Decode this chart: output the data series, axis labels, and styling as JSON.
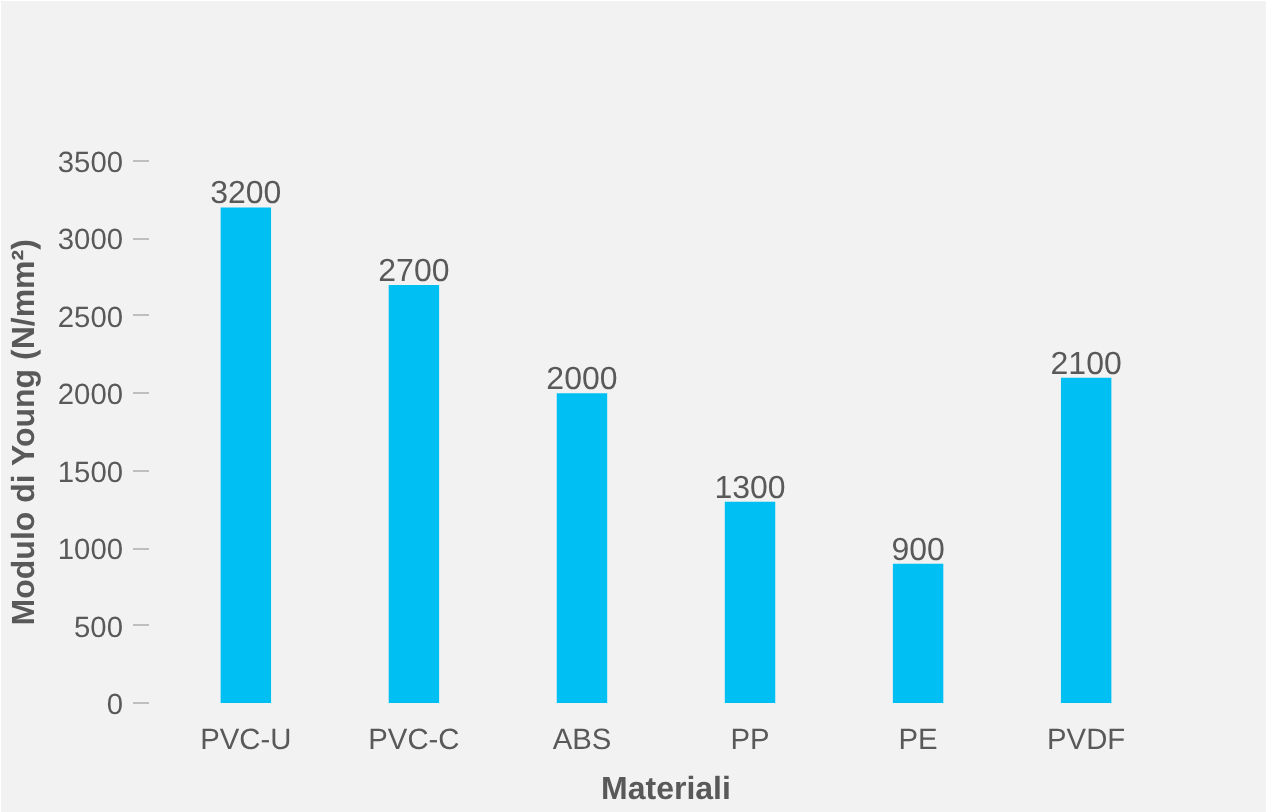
{
  "chart_data": {
    "type": "bar",
    "xlabel": "Materiali",
    "ylabel": "Modulo di Young (N/mm²)",
    "categories": [
      "PVC-U",
      "PVC-C",
      "ABS",
      "PP",
      "PE",
      "PVDF"
    ],
    "values": [
      3200,
      2700,
      2000,
      1300,
      900,
      2100
    ],
    "color": "#00bff3",
    "data_labels": true,
    "grid": false,
    "ylim": [
      0,
      3500
    ],
    "yticks": [
      0,
      500,
      1000,
      1500,
      2000,
      2500,
      3000,
      3500
    ]
  }
}
